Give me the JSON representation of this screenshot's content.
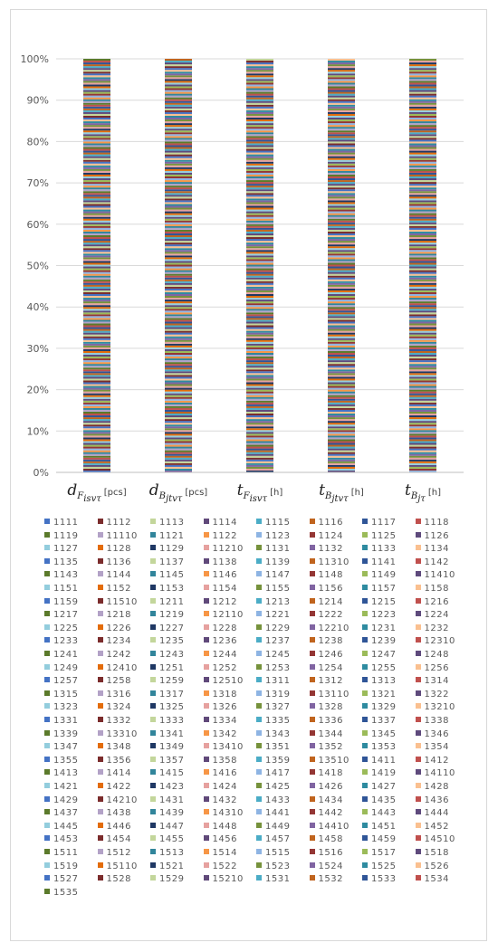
{
  "chart_data": {
    "type": "bar",
    "stacked": true,
    "percent": true,
    "ylim": [
      0,
      100
    ],
    "yticks": [
      "0%",
      "10%",
      "20%",
      "30%",
      "40%",
      "50%",
      "60%",
      "70%",
      "80%",
      "90%",
      "100%"
    ],
    "categories": [
      {
        "main": "d",
        "sub": "F",
        "subsub": "isvτ",
        "unit": "[pcs]"
      },
      {
        "main": "d",
        "sub": "B",
        "subsub": "jtvτ",
        "unit": "[pcs]"
      },
      {
        "main": "t",
        "sub": "F",
        "subsub": "isvτ",
        "unit": "[h]"
      },
      {
        "main": "t",
        "sub": "B",
        "subsub": "jtvτ",
        "unit": "[h]"
      },
      {
        "main": "t",
        "sub": "B",
        "subsub": "jτ",
        "unit": "[h]"
      }
    ],
    "series_note": "",
    "legend": [
      "1111",
      "1112",
      "1113",
      "1114",
      "1115",
      "1116",
      "1117",
      "1118",
      "1119",
      "11110",
      "1121",
      "1122",
      "1123",
      "1124",
      "1125",
      "1126",
      "1127",
      "1128",
      "1129",
      "11210",
      "1131",
      "1132",
      "1133",
      "1134",
      "1135",
      "1136",
      "1137",
      "1138",
      "1139",
      "11310",
      "1141",
      "1142",
      "1143",
      "1144",
      "1145",
      "1146",
      "1147",
      "1148",
      "1149",
      "11410",
      "1151",
      "1152",
      "1153",
      "1154",
      "1155",
      "1156",
      "1157",
      "1158",
      "1159",
      "11510",
      "1211",
      "1212",
      "1213",
      "1214",
      "1215",
      "1216",
      "1217",
      "1218",
      "1219",
      "12110",
      "1221",
      "1222",
      "1223",
      "1224",
      "1225",
      "1226",
      "1227",
      "1228",
      "1229",
      "12210",
      "1231",
      "1232",
      "1233",
      "1234",
      "1235",
      "1236",
      "1237",
      "1238",
      "1239",
      "12310",
      "1241",
      "1242",
      "1243",
      "1244",
      "1245",
      "1246",
      "1247",
      "1248",
      "1249",
      "12410",
      "1251",
      "1252",
      "1253",
      "1254",
      "1255",
      "1256",
      "1257",
      "1258",
      "1259",
      "12510",
      "1311",
      "1312",
      "1313",
      "1314",
      "1315",
      "1316",
      "1317",
      "1318",
      "1319",
      "13110",
      "1321",
      "1322",
      "1323",
      "1324",
      "1325",
      "1326",
      "1327",
      "1328",
      "1329",
      "13210",
      "1331",
      "1332",
      "1333",
      "1334",
      "1335",
      "1336",
      "1337",
      "1338",
      "1339",
      "13310",
      "1341",
      "1342",
      "1343",
      "1344",
      "1345",
      "1346",
      "1347",
      "1348",
      "1349",
      "13410",
      "1351",
      "1352",
      "1353",
      "1354",
      "1355",
      "1356",
      "1357",
      "1358",
      "1359",
      "13510",
      "1411",
      "1412",
      "1413",
      "1414",
      "1415",
      "1416",
      "1417",
      "1418",
      "1419",
      "14110",
      "1421",
      "1422",
      "1423",
      "1424",
      "1425",
      "1426",
      "1427",
      "1428",
      "1429",
      "14210",
      "1431",
      "1432",
      "1433",
      "1434",
      "1435",
      "1436",
      "1437",
      "1438",
      "1439",
      "14310",
      "1441",
      "1442",
      "1443",
      "1444",
      "1445",
      "1446",
      "1447",
      "1448",
      "1449",
      "14410",
      "1451",
      "1452",
      "1453",
      "1454",
      "1455",
      "1456",
      "1457",
      "1458",
      "1459",
      "14510",
      "1511",
      "1512",
      "1513",
      "1514",
      "1515",
      "1516",
      "1517",
      "1518",
      "1519",
      "15110",
      "1521",
      "1522",
      "1523",
      "1524",
      "1525",
      "1526",
      "1527",
      "1528",
      "1529",
      "15210",
      "1531",
      "1532",
      "1533",
      "1534",
      "1535"
    ],
    "palette": [
      "#4472c4",
      "#c0504d",
      "#9bbb59",
      "#8064a2",
      "#4bacc6",
      "#f79646",
      "#1f3864",
      "#7b2c2c",
      "#5b7a2b",
      "#5e4a7c",
      "#2e8ba0",
      "#c0641e",
      "#8eb4e3",
      "#e6a19f",
      "#c3d69b",
      "#b3a2c7",
      "#93cddd",
      "#fac090",
      "#2f5597",
      "#943634",
      "#76923c",
      "#60497a",
      "#31859b",
      "#e36c09"
    ]
  }
}
